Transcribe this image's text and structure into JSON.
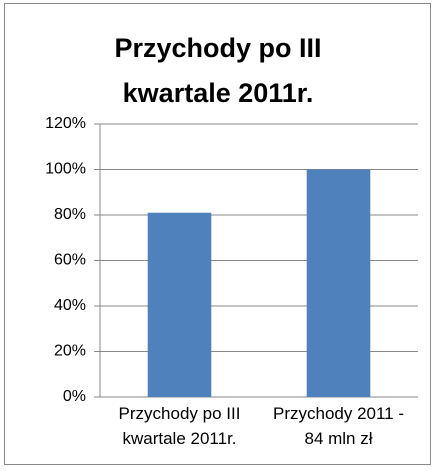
{
  "chart_data": {
    "type": "bar",
    "title": "Przychody po III kwartale 2011r.",
    "categories": [
      "Przychody po III kwartale 2011r.",
      "Przychody 2011 - 84 mln zł"
    ],
    "values": [
      81,
      100
    ],
    "color": "#4f81bd",
    "ylim": [
      0,
      120
    ],
    "yticks": [
      {
        "value": 0,
        "label": "0%"
      },
      {
        "value": 20,
        "label": "20%"
      },
      {
        "value": 40,
        "label": "40%"
      },
      {
        "value": 60,
        "label": "60%"
      },
      {
        "value": 80,
        "label": "80%"
      },
      {
        "value": 100,
        "label": "100%"
      },
      {
        "value": 120,
        "label": "120%"
      }
    ],
    "grid": true
  }
}
